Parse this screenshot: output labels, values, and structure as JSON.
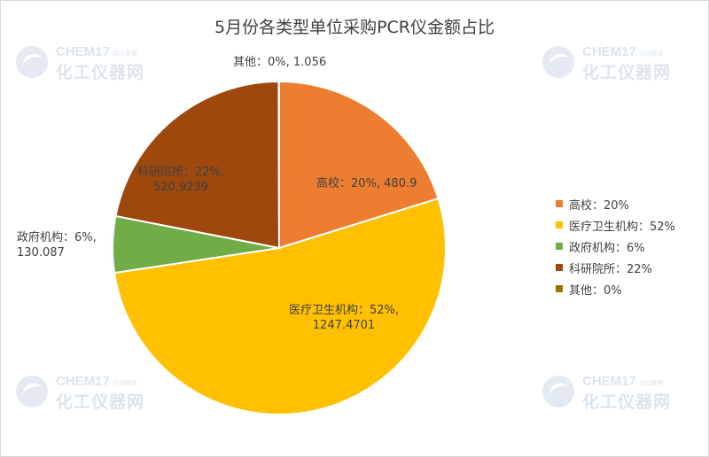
{
  "chart_data": {
    "type": "pie",
    "title": "5月份各类型单位采购PCR仪金额占比",
    "slices": [
      {
        "label": "高校",
        "percent": "20%",
        "value": 480.9,
        "value_text": "480.9",
        "color": "#ed7d31"
      },
      {
        "label": "医疗卫生机构",
        "percent": "52%",
        "value": 1247.4701,
        "value_text": "1247.4701",
        "color": "#ffc000"
      },
      {
        "label": "政府机构",
        "percent": "6%",
        "value": 130.087,
        "value_text": "130.087",
        "color": "#70ad47"
      },
      {
        "label": "科研院所",
        "percent": "22%",
        "value": 520.9239,
        "value_text": "520.9239",
        "color": "#9e480e"
      },
      {
        "label": "其他",
        "percent": "0%",
        "value": 1.056,
        "value_text": "1.056",
        "color": "#997300"
      }
    ],
    "legend_position": "right"
  },
  "watermark": {
    "brand_en": "CHEM17",
    "brand_tag": "共同繁荣",
    "brand_cn": "化工仪器网"
  }
}
